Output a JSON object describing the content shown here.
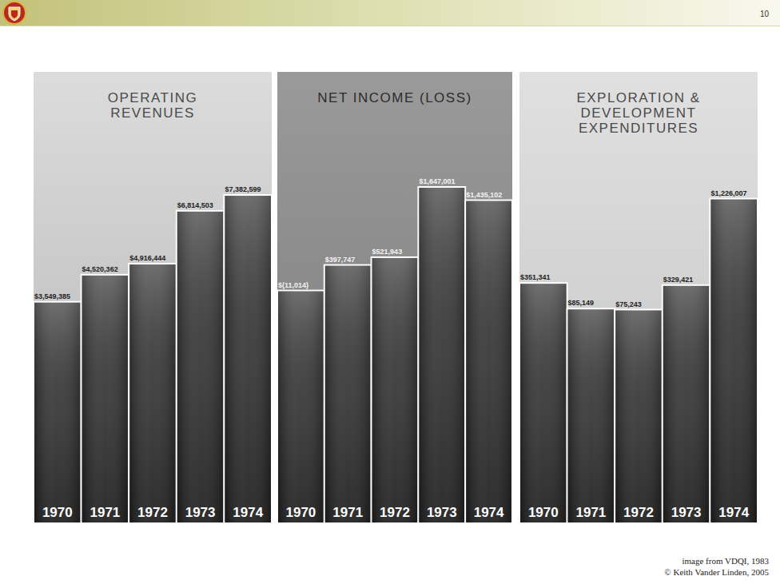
{
  "slide": {
    "number": "10",
    "footer": [
      "image from VDQI, 1983",
      "© Keith Vander Linden, 2005"
    ]
  },
  "chart_data": [
    {
      "type": "bar",
      "title": "OPERATING REVENUES",
      "categories": [
        "1970",
        "1971",
        "1972",
        "1973",
        "1974"
      ],
      "values": [
        3549385,
        4520362,
        4916444,
        6814503,
        7382599
      ],
      "value_labels": [
        "$3,549,385",
        "$4,520,362",
        "$4,916,444",
        "$6,814,503",
        "$7,382,599"
      ],
      "color": "#3a3a3a",
      "ylim": [
        -4400000,
        11800000
      ],
      "data_labels": true,
      "tick_labels": false
    },
    {
      "type": "bar",
      "title": "NET INCOME (LOSS)",
      "categories": [
        "1970",
        "1971",
        "1972",
        "1973",
        "1974"
      ],
      "values": [
        -11014,
        397747,
        521943,
        1647001,
        1435102
      ],
      "value_labels": [
        "$(11,014)",
        "$397,747",
        "$521,943",
        "$1,647,001",
        "$1,435,102"
      ],
      "color": "#3a3a3a",
      "ylim": [
        -3740000,
        3490000
      ],
      "data_labels": true,
      "tick_labels": false
    },
    {
      "type": "bar",
      "title": "EXPLORATION & DEVELOPMENT EXPENDITURES",
      "categories": [
        "1970",
        "1971",
        "1972",
        "1973",
        "1974"
      ],
      "values": [
        351341,
        85149,
        75243,
        329421,
        1226007
      ],
      "value_labels": [
        "$351,341",
        "$85,149",
        "$75,243",
        "$329,421",
        "$1,226,007"
      ],
      "color": "#3a3a3a",
      "ylim": [
        -2140000,
        2540000
      ],
      "data_labels": true,
      "tick_labels": false
    }
  ]
}
